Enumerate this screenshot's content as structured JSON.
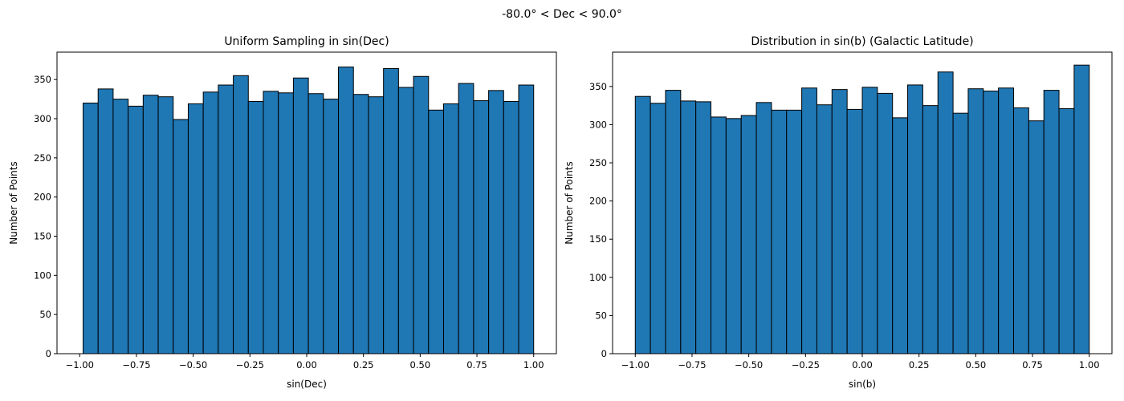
{
  "suptitle": "-80.0° < Dec < 90.0°",
  "chart_data": [
    {
      "type": "bar",
      "title": "Uniform Sampling in sin(Dec)",
      "xlabel": "sin(Dec)",
      "ylabel": "Number of Points",
      "xlim": [
        -1.1,
        1.1
      ],
      "ylim": [
        0,
        385
      ],
      "bin_range": [
        -0.985,
        1.0
      ],
      "bar_color": "#1f77b4",
      "edge_color": "#000000",
      "xticks": [
        -1.0,
        -0.75,
        -0.5,
        -0.25,
        0.0,
        0.25,
        0.5,
        0.75,
        1.0
      ],
      "xtick_labels": [
        "−1.00",
        "−0.75",
        "−0.50",
        "−0.25",
        "0.00",
        "0.25",
        "0.50",
        "0.75",
        "1.00"
      ],
      "yticks": [
        0,
        50,
        100,
        150,
        200,
        250,
        300,
        350
      ],
      "ytick_labels": [
        "0",
        "50",
        "100",
        "150",
        "200",
        "250",
        "300",
        "350"
      ],
      "values": [
        320,
        338,
        325,
        316,
        330,
        328,
        299,
        319,
        334,
        343,
        355,
        322,
        335,
        333,
        352,
        332,
        325,
        366,
        331,
        328,
        364,
        340,
        354,
        311,
        319,
        345,
        323,
        336,
        322,
        343
      ]
    },
    {
      "type": "bar",
      "title": "Distribution in sin(b) (Galactic Latitude)",
      "xlabel": "sin(b)",
      "ylabel": "Number of Points",
      "xlim": [
        -1.1,
        1.1
      ],
      "ylim": [
        0,
        395
      ],
      "bin_range": [
        -1.0,
        1.0
      ],
      "bar_color": "#1f77b4",
      "edge_color": "#000000",
      "xticks": [
        -1.0,
        -0.75,
        -0.5,
        -0.25,
        0.0,
        0.25,
        0.5,
        0.75,
        1.0
      ],
      "xtick_labels": [
        "−1.00",
        "−0.75",
        "−0.50",
        "−0.25",
        "0.00",
        "0.25",
        "0.50",
        "0.75",
        "1.00"
      ],
      "yticks": [
        0,
        50,
        100,
        150,
        200,
        250,
        300,
        350
      ],
      "ytick_labels": [
        "0",
        "50",
        "100",
        "150",
        "200",
        "250",
        "300",
        "350"
      ],
      "values": [
        337,
        328,
        345,
        331,
        330,
        310,
        308,
        312,
        329,
        319,
        319,
        348,
        326,
        346,
        320,
        349,
        341,
        309,
        352,
        325,
        369,
        315,
        347,
        344,
        348,
        322,
        305,
        345,
        321,
        378
      ]
    }
  ]
}
